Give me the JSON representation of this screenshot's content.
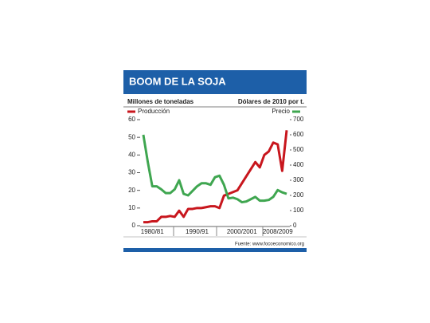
{
  "chart_data": {
    "type": "line",
    "title": "BOOM DE LA SOJA",
    "y_label": "Millones de toneladas",
    "y2_label": "Dólares de 2010 por t.",
    "source": "Fuente: www.focoeconomico.org",
    "categories": [
      null,
      null,
      "1980/81",
      null,
      null,
      null,
      null,
      null,
      null,
      null,
      null,
      null,
      "1990/91",
      null,
      null,
      null,
      null,
      null,
      null,
      null,
      null,
      null,
      "2000/2001",
      null,
      null,
      null,
      null,
      null,
      null,
      null,
      "2008/2009",
      null,
      null
    ],
    "series": [
      {
        "name": "Producción",
        "color": "#c8161d",
        "values": [
          2,
          2,
          2.5,
          2.5,
          5,
          5,
          5.5,
          5,
          8.5,
          5,
          9.5,
          9.5,
          10,
          10,
          10.5,
          11,
          11,
          10,
          17,
          18,
          19,
          20,
          24,
          28,
          32,
          36,
          33,
          40,
          42,
          47,
          46,
          31,
          54
        ]
      },
      {
        "name": "Precio",
        "color": "#3fa650",
        "axis": "y2",
        "values": [
          600,
          420,
          260,
          260,
          240,
          215,
          215,
          240,
          300,
          210,
          200,
          230,
          260,
          280,
          280,
          270,
          320,
          330,
          270,
          180,
          185,
          175,
          155,
          160,
          175,
          190,
          165,
          165,
          170,
          190,
          235,
          220,
          210
        ]
      }
    ],
    "ylim": [
      0,
      60
    ],
    "yticks": [
      0,
      10,
      20,
      30,
      40,
      50,
      60
    ],
    "y2lim": [
      0,
      700
    ],
    "y2ticks": [
      0,
      100,
      200,
      300,
      400,
      500,
      600,
      700
    ]
  }
}
